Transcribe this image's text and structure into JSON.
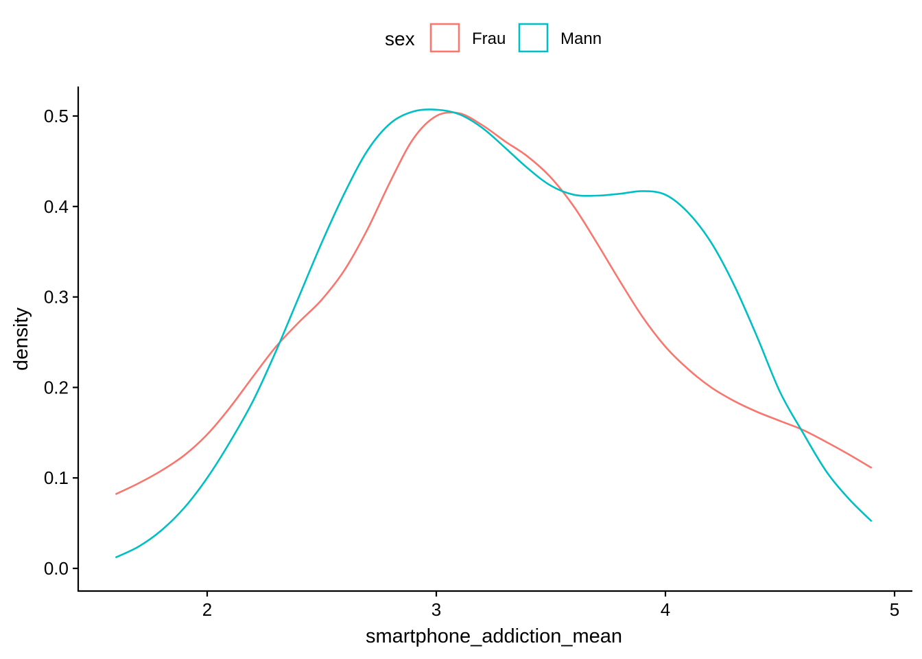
{
  "chart_data": {
    "type": "line",
    "subtype": "density",
    "xlabel": "smartphone_addiction_mean",
    "ylabel": "density",
    "xlim": [
      1.45,
      5.05
    ],
    "ylim": [
      -0.025,
      0.53
    ],
    "x_ticks": [
      2,
      3,
      4,
      5
    ],
    "y_ticks": [
      0.0,
      0.1,
      0.2,
      0.3,
      0.4,
      0.5
    ],
    "x_tick_labels": [
      "2",
      "3",
      "4",
      "5"
    ],
    "y_tick_labels": [
      "0.0",
      "0.1",
      "0.2",
      "0.3",
      "0.4",
      "0.5"
    ],
    "grid": false,
    "legend": {
      "title": "sex",
      "position": "top",
      "entries": [
        "Frau",
        "Mann"
      ]
    },
    "series": [
      {
        "name": "Frau",
        "color": "#F8766D",
        "x": [
          1.6,
          1.7,
          1.8,
          1.9,
          2.0,
          2.1,
          2.2,
          2.3,
          2.4,
          2.5,
          2.6,
          2.7,
          2.8,
          2.9,
          3.0,
          3.1,
          3.2,
          3.3,
          3.4,
          3.5,
          3.6,
          3.7,
          3.8,
          3.9,
          4.0,
          4.1,
          4.2,
          4.3,
          4.4,
          4.5,
          4.6,
          4.7,
          4.8,
          4.9
        ],
        "y": [
          0.082,
          0.094,
          0.108,
          0.125,
          0.148,
          0.178,
          0.212,
          0.245,
          0.272,
          0.297,
          0.33,
          0.375,
          0.428,
          0.475,
          0.5,
          0.503,
          0.49,
          0.472,
          0.455,
          0.432,
          0.4,
          0.36,
          0.318,
          0.278,
          0.245,
          0.22,
          0.2,
          0.185,
          0.173,
          0.163,
          0.153,
          0.14,
          0.126,
          0.111
        ]
      },
      {
        "name": "Mann",
        "color": "#00BFC4",
        "x": [
          1.6,
          1.7,
          1.8,
          1.9,
          2.0,
          2.1,
          2.2,
          2.3,
          2.4,
          2.5,
          2.6,
          2.7,
          2.8,
          2.9,
          3.0,
          3.1,
          3.2,
          3.3,
          3.4,
          3.5,
          3.6,
          3.7,
          3.8,
          3.9,
          4.0,
          4.1,
          4.2,
          4.3,
          4.4,
          4.5,
          4.6,
          4.7,
          4.8,
          4.9
        ],
        "y": [
          0.012,
          0.024,
          0.042,
          0.067,
          0.1,
          0.14,
          0.185,
          0.24,
          0.3,
          0.36,
          0.415,
          0.462,
          0.492,
          0.505,
          0.507,
          0.502,
          0.487,
          0.465,
          0.442,
          0.423,
          0.413,
          0.412,
          0.414,
          0.417,
          0.413,
          0.393,
          0.36,
          0.313,
          0.256,
          0.195,
          0.15,
          0.108,
          0.077,
          0.052
        ]
      }
    ]
  }
}
